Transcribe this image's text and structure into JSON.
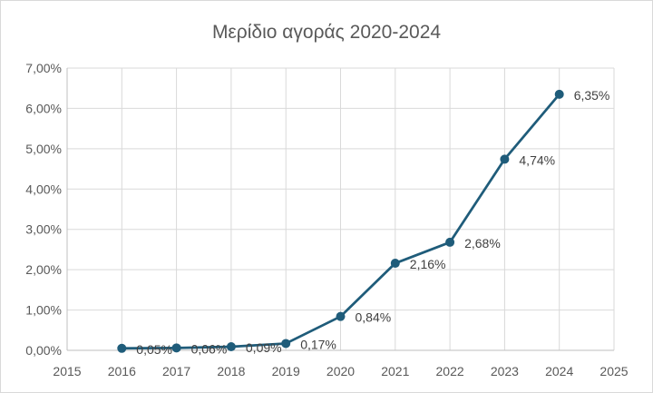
{
  "chart_data": {
    "type": "scatter",
    "title": "Μερίδιο αγοράς 2020-2024",
    "xlabel": "",
    "ylabel": "",
    "x": [
      2016,
      2017,
      2018,
      2019,
      2020,
      2021,
      2022,
      2023,
      2024
    ],
    "series": [
      {
        "values": [
          0.05,
          0.06,
          0.09,
          0.17,
          0.84,
          2.16,
          2.68,
          4.74,
          6.35
        ],
        "labels": [
          "0,05%",
          "0,06%",
          "0,09%",
          "0,17%",
          "0,84%",
          "2,16%",
          "2,68%",
          "4,74%",
          "6,35%"
        ]
      }
    ],
    "xlim": [
      2015,
      2025
    ],
    "ylim": [
      0,
      7
    ],
    "x_ticks": [
      "2015",
      "2016",
      "2017",
      "2018",
      "2019",
      "2020",
      "2021",
      "2022",
      "2023",
      "2024",
      "2025"
    ],
    "y_ticks": [
      "0,00%",
      "1,00%",
      "2,00%",
      "3,00%",
      "4,00%",
      "5,00%",
      "6,00%",
      "7,00%"
    ],
    "grid": true,
    "legend": "none",
    "line_color": "#1f5c7a"
  }
}
